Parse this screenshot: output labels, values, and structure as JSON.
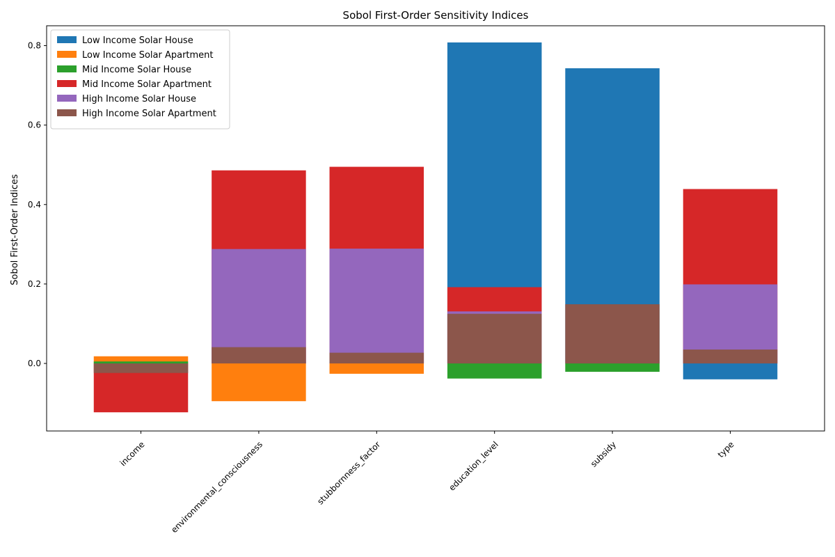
{
  "chart_data": {
    "type": "bar",
    "title": "Sobol First-Order Sensitivity Indices",
    "xlabel": "",
    "ylabel": "Sobol First-Order Indices",
    "categories": [
      "income",
      "environmental_consciousness",
      "stubbornness_factor",
      "education_level",
      "subsidy",
      "type"
    ],
    "ylim": [
      -0.17,
      0.85
    ],
    "yticks": [
      0.0,
      0.2,
      0.4,
      0.6,
      0.8
    ],
    "ytick_labels": [
      "0.0",
      "0.2",
      "0.4",
      "0.6",
      "0.8"
    ],
    "grid": false,
    "legend_position": "upper-left",
    "overlay": true,
    "series": [
      {
        "name": "Low Income Solar House",
        "color": "#1f77b4",
        "values": [
          0.0,
          0.0,
          0.0,
          0.808,
          0.743,
          -0.04
        ]
      },
      {
        "name": "Low Income Solar Apartment",
        "color": "#ff7f0e",
        "values": [
          0.018,
          -0.095,
          -0.026,
          0.0,
          0.0,
          0.0
        ]
      },
      {
        "name": "Mid Income Solar House",
        "color": "#2ca02c",
        "values": [
          0.005,
          0.0,
          0.0,
          -0.038,
          -0.021,
          0.0
        ]
      },
      {
        "name": "Mid Income Solar Apartment",
        "color": "#d62728",
        "values": [
          -0.123,
          0.486,
          0.495,
          0.192,
          0.0,
          0.439
        ]
      },
      {
        "name": "High Income Solar House",
        "color": "#9467bd",
        "values": [
          0.0,
          0.288,
          0.289,
          0.131,
          0.0,
          0.199
        ]
      },
      {
        "name": "High Income Solar Apartment",
        "color": "#8c564b",
        "values": [
          -0.024,
          0.041,
          0.027,
          0.125,
          0.149,
          0.035
        ]
      }
    ]
  }
}
